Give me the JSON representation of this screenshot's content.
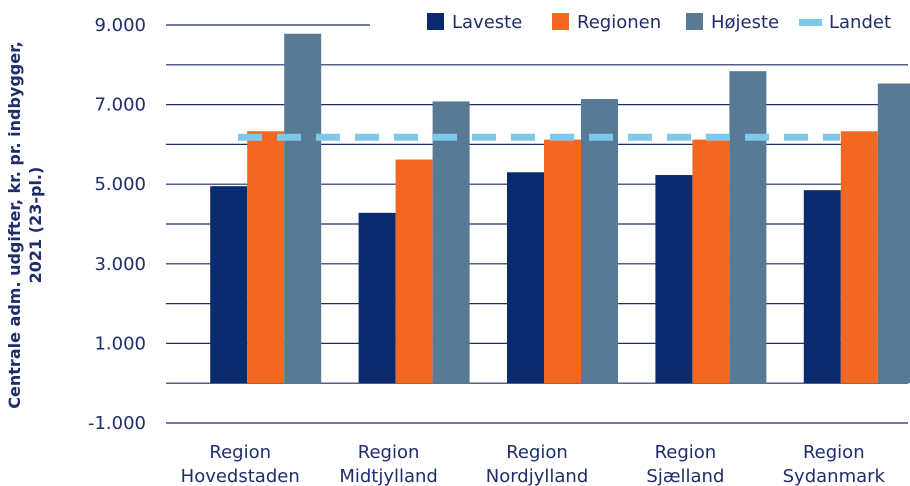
{
  "chart_data": {
    "type": "bar",
    "title": "",
    "xlabel": "",
    "ylabel": [
      "Centrale adm. udgifter, kr. pr. indbygger,",
      "2021 (23-pl.)"
    ],
    "categories": [
      [
        "Region",
        "Hovedstaden"
      ],
      [
        "Region",
        "Midtjylland"
      ],
      [
        "Region",
        "Nordjylland"
      ],
      [
        "Region",
        "Sjælland"
      ],
      [
        "Region",
        "Sydanmark"
      ]
    ],
    "yticks": [
      "-1.000",
      "1.000",
      "3.000",
      "5.000",
      "7.000",
      "9.000"
    ],
    "ylim": [
      -1000,
      9000
    ],
    "grid": true,
    "legend_position": "top-right",
    "series": [
      {
        "name": "Laveste",
        "color": "#0a2a6e",
        "values": [
          4950,
          4280,
          5300,
          5230,
          4850
        ]
      },
      {
        "name": "Regionen",
        "color": "#f26722",
        "values": [
          6330,
          5620,
          6120,
          6120,
          6330
        ]
      },
      {
        "name": "Højeste",
        "color": "#587a94",
        "values": [
          8780,
          7080,
          7140,
          7840,
          7530
        ]
      }
    ],
    "reference_line": {
      "name": "Landet",
      "color": "#7ec8ec",
      "value": 6180,
      "style": "dashed"
    }
  }
}
